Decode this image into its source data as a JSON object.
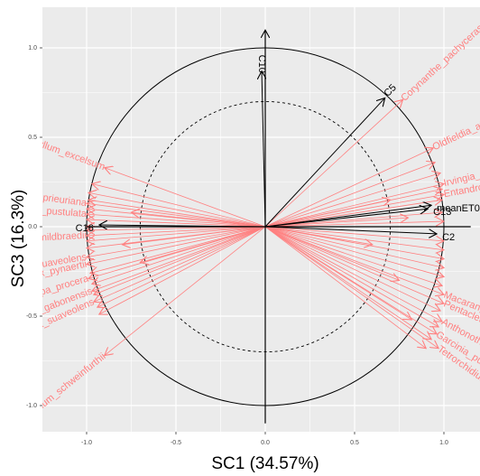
{
  "chart_data": {
    "type": "scatter",
    "subtype": "correlation-circle-biplot",
    "xlabel": "SC1 (34.57%)",
    "ylabel": "SC3 (16.3%)",
    "xlim": [
      -1.2,
      1.15
    ],
    "ylim": [
      -1.2,
      1.15
    ],
    "xticks": [
      -1.0,
      -0.5,
      0.0,
      0.5,
      1.0
    ],
    "xtick_labels": [
      "-1.0",
      "-0.5",
      "0.0",
      "0.5",
      "1.0"
    ],
    "yticks": [
      -1.0,
      -0.5,
      0.0,
      0.5,
      1.0
    ],
    "ytick_labels": [
      "-1.0",
      "-0.5",
      "0.0",
      "0.5",
      "1.0"
    ],
    "grid": true,
    "background": "#ebebeb",
    "grid_color": "#ffffff",
    "circle_radius": 1.0,
    "inner_circle_radius": 0.7,
    "axis_lines": true,
    "variable_color": "#000000",
    "species_color": "#ff8080",
    "variables": [
      {
        "label": "C10",
        "x": -0.02,
        "y": 0.87,
        "label_rotation": -90
      },
      {
        "label": "C5",
        "x": 0.67,
        "y": 0.72,
        "label_rotation": -45
      },
      {
        "label": "meanET0",
        "x": 0.93,
        "y": 0.12
      },
      {
        "label": "C13",
        "x": 0.91,
        "y": 0.1
      },
      {
        "label": "C2",
        "x": 0.96,
        "y": -0.04
      },
      {
        "label": "C16",
        "x": -0.93,
        "y": 0.01
      }
    ],
    "species_labels": [
      {
        "label": "Corynanthe_pachyceras",
        "x": 0.77,
        "y": 0.71
      },
      {
        "label": "Oldfieldia_africana",
        "x": 0.94,
        "y": 0.44
      },
      {
        "label": "Irvingia_grandifolia",
        "x": 1.0,
        "y": 0.24
      },
      {
        "label": "Entandrophragma_angolense",
        "x": 1.0,
        "y": 0.18
      },
      {
        "label": "Canarium_schweinfurthii",
        "x": -0.9,
        "y": -0.72
      },
      {
        "label": "Chrysophyllum_excelsum",
        "x": -0.9,
        "y": 0.33
      },
      {
        "label": "Macaranga_spinosa",
        "x": 1.0,
        "y": -0.38
      },
      {
        "label": "Pentaclethra_macrophylla",
        "x": 1.0,
        "y": -0.43
      },
      {
        "label": "Anthonotha_fragrans",
        "x": 0.99,
        "y": -0.53
      },
      {
        "label": "Garcinia_punctata",
        "x": 0.96,
        "y": -0.6
      },
      {
        "label": "Tetrorchidium_didymostemon",
        "x": 0.97,
        "y": -0.68
      },
      {
        "label": "Greenwayodendron_suaveolens",
        "x": -1.0,
        "y": -0.17
      },
      {
        "label": "Angylocalyx_pynaertii",
        "x": -1.0,
        "y": -0.21
      },
      {
        "label": "Carapa_procera",
        "x": -0.99,
        "y": -0.29
      },
      {
        "label": "Staudtia_gabonensis",
        "x": -0.97,
        "y": -0.36
      },
      {
        "label": "Polyalthia_suaveolens",
        "x": -0.96,
        "y": -0.42
      },
      {
        "label": "Celtis_mildbraedii",
        "x": -1.0,
        "y": -0.05
      },
      {
        "label": "Strombosia_pustulata",
        "x": -1.0,
        "y": 0.07
      },
      {
        "label": "Trichilia_prieuriana",
        "x": -1.0,
        "y": 0.13
      }
    ],
    "extra_rays": [
      [
        0.95,
        0.36
      ],
      [
        0.98,
        0.3
      ],
      [
        0.99,
        0.21
      ],
      [
        0.99,
        0.15
      ],
      [
        0.99,
        0.08
      ],
      [
        1.0,
        0.03
      ],
      [
        1.0,
        -0.08
      ],
      [
        1.0,
        -0.13
      ],
      [
        1.0,
        -0.18
      ],
      [
        1.0,
        -0.23
      ],
      [
        1.0,
        -0.28
      ],
      [
        0.99,
        -0.33
      ],
      [
        0.98,
        -0.47
      ],
      [
        0.97,
        -0.56
      ],
      [
        0.93,
        -0.63
      ],
      [
        0.9,
        -0.68
      ],
      [
        0.82,
        -0.52
      ],
      [
        -0.97,
        0.24
      ],
      [
        -0.99,
        0.19
      ],
      [
        -0.99,
        0.15
      ],
      [
        -1.0,
        0.1
      ],
      [
        -1.0,
        0.04
      ],
      [
        -1.0,
        0.0
      ],
      [
        -1.0,
        -0.02
      ],
      [
        -1.0,
        -0.08
      ],
      [
        -1.0,
        -0.12
      ],
      [
        -0.98,
        -0.26
      ],
      [
        -0.97,
        -0.32
      ],
      [
        -0.96,
        -0.38
      ],
      [
        -0.94,
        -0.45
      ],
      [
        -0.93,
        -0.49
      ],
      [
        -0.8,
        -0.1
      ],
      [
        -0.75,
        0.08
      ],
      [
        -0.7,
        -0.2
      ],
      [
        0.7,
        0.15
      ],
      [
        0.75,
        -0.3
      ],
      [
        0.6,
        -0.1
      ],
      [
        0.8,
        0.05
      ]
    ]
  }
}
